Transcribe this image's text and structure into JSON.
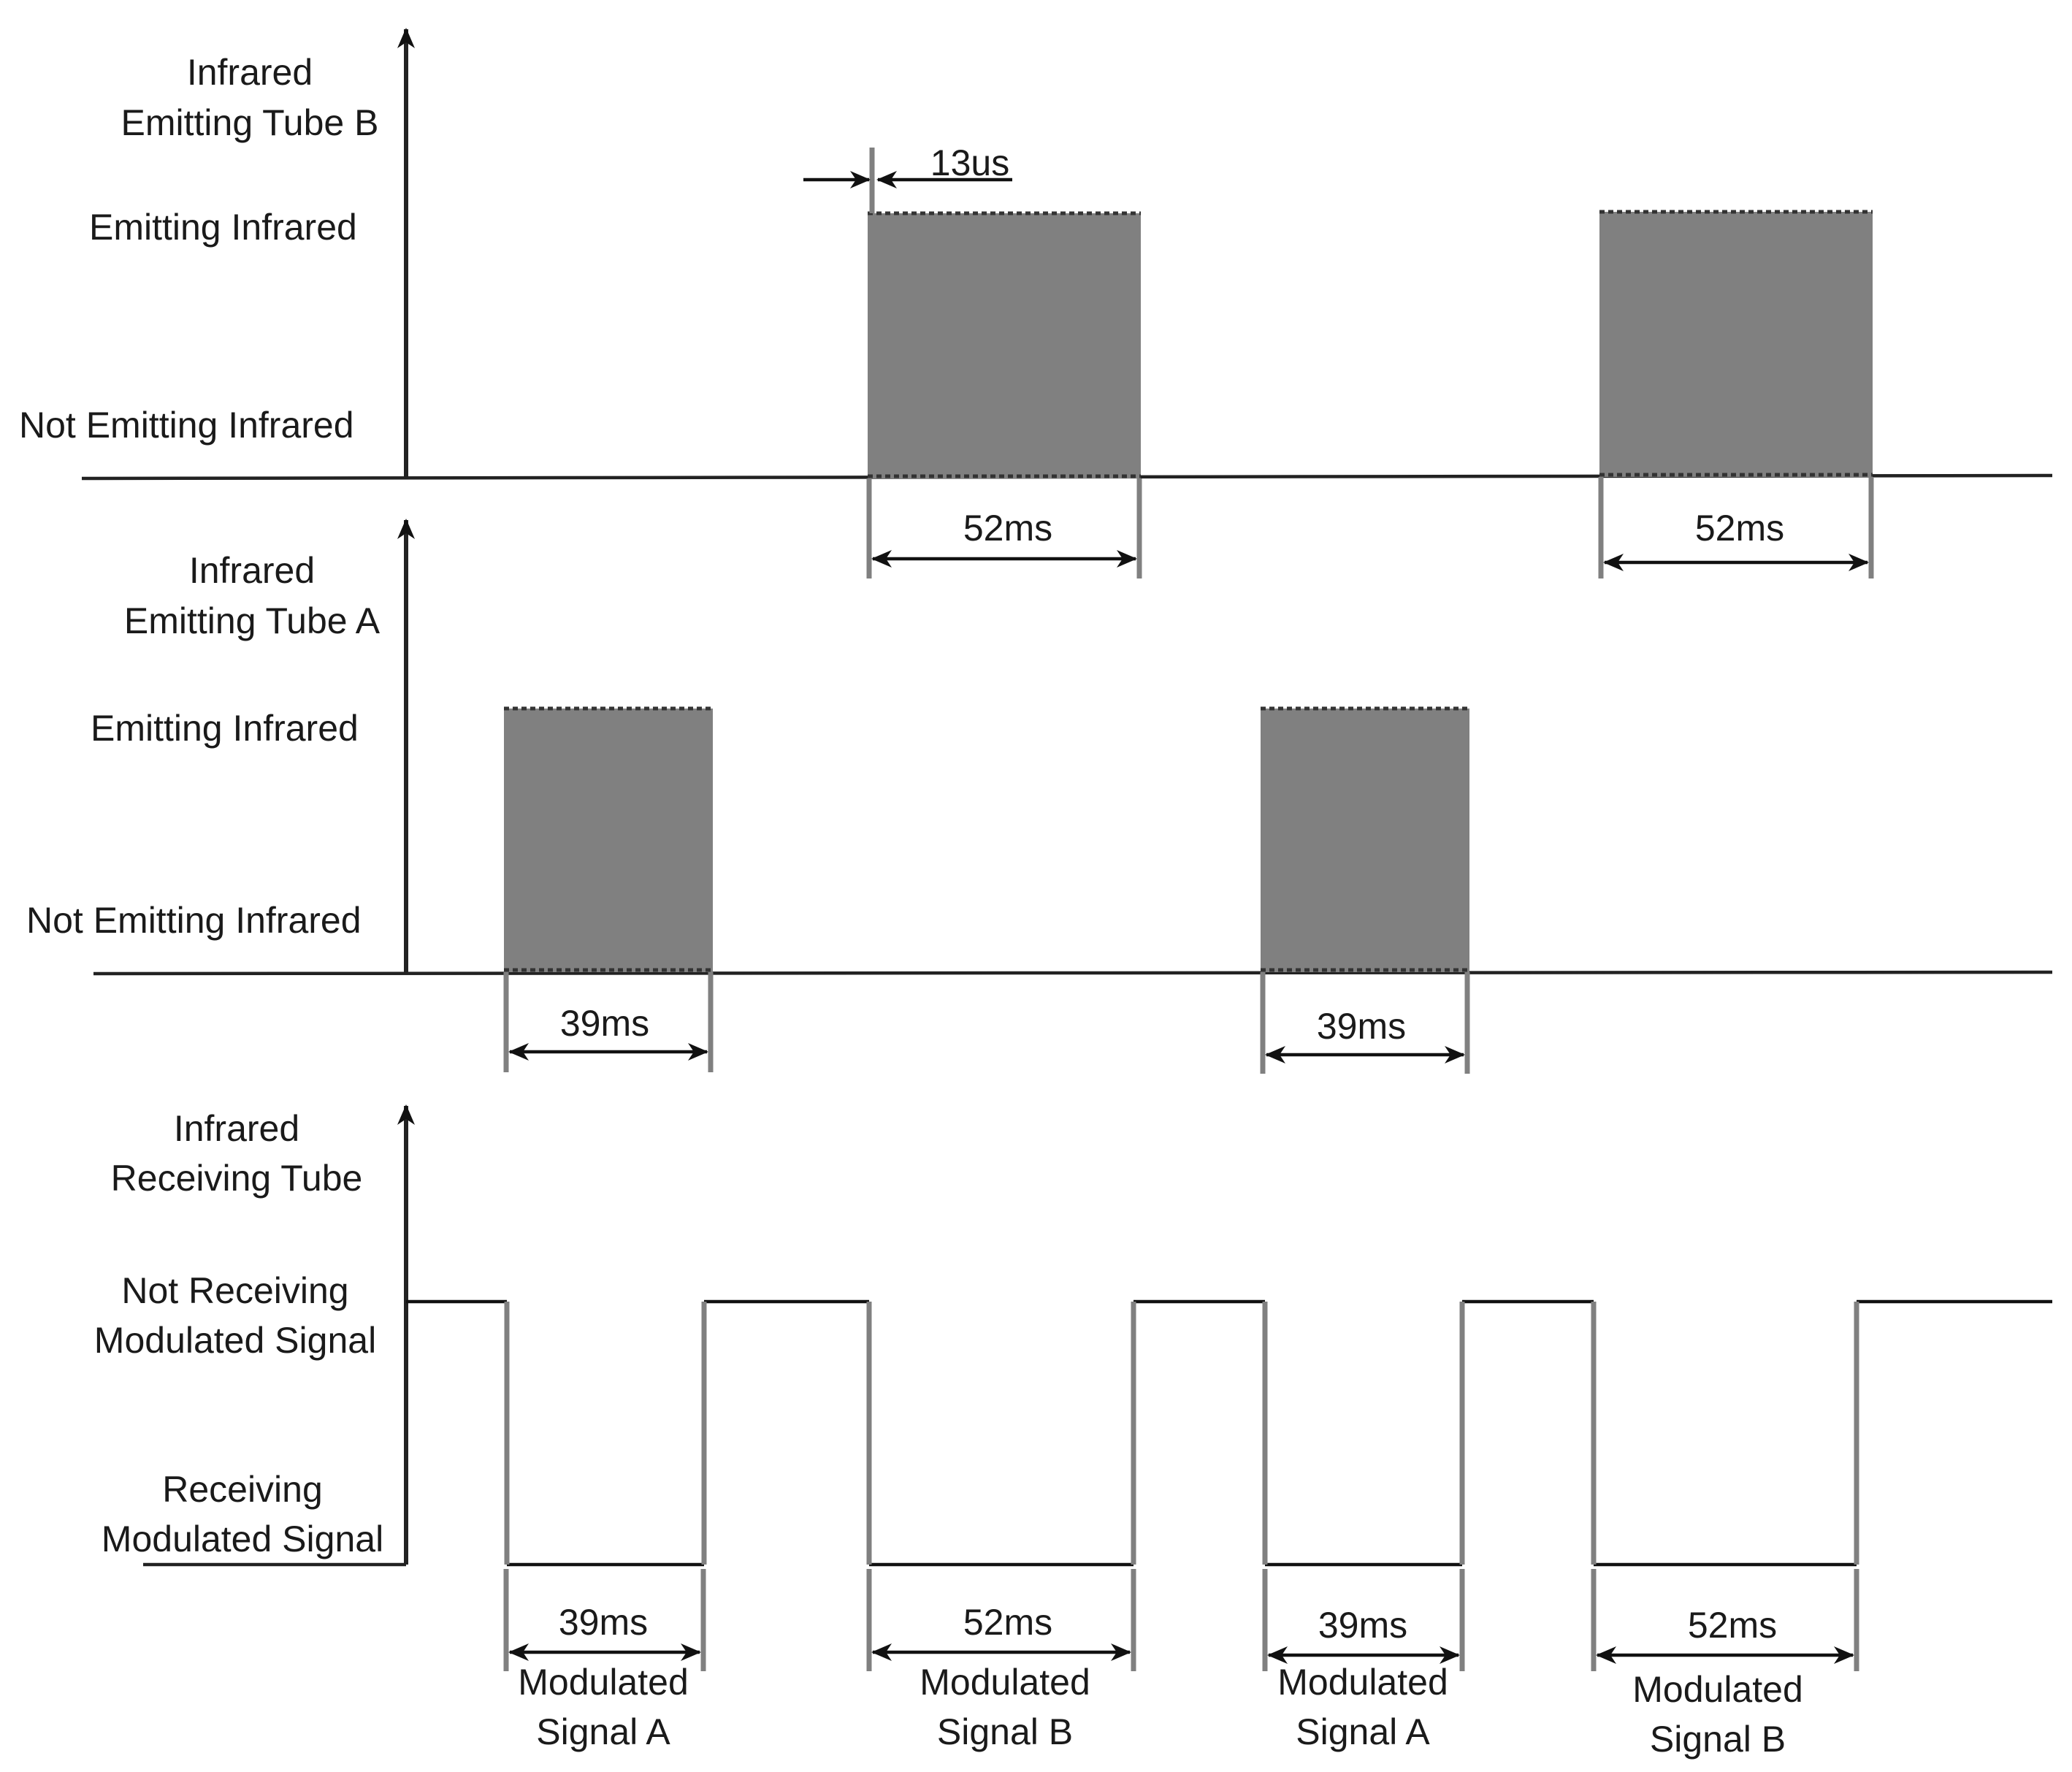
{
  "tube_b": {
    "label_line1": "Infrared",
    "label_line2": "Emitting Tube B",
    "level_high": "Emitting Infrared",
    "level_low": "Not Emitting Infrared",
    "carrier_period": "13us",
    "pulse_1_duration": "52ms",
    "pulse_2_duration": "52ms"
  },
  "tube_a": {
    "label_line1": "Infrared",
    "label_line2": "Emitting Tube A",
    "level_high": "Emitting Infrared",
    "level_low": "Not Emitting Infrared",
    "pulse_1_duration": "39ms",
    "pulse_2_duration": "39ms"
  },
  "receiver": {
    "label_line1": "Infrared",
    "label_line2": "Receiving Tube",
    "level_high_line1": "Not Receiving",
    "level_high_line2": "Modulated Signal",
    "level_low_line1": "Receiving",
    "level_low_line2": "Modulated Signal",
    "segments": [
      {
        "duration": "39ms",
        "name_line1": "Modulated",
        "name_line2": "Signal A"
      },
      {
        "duration": "52ms",
        "name_line1": "Modulated",
        "name_line2": "Signal B"
      },
      {
        "duration": "39ms",
        "name_line1": "Modulated",
        "name_line2": "Signal A"
      },
      {
        "duration": "52ms",
        "name_line1": "Modulated",
        "name_line2": "Signal B"
      }
    ]
  },
  "colors": {
    "pulse_fill": "#808080",
    "line": "#222222"
  }
}
